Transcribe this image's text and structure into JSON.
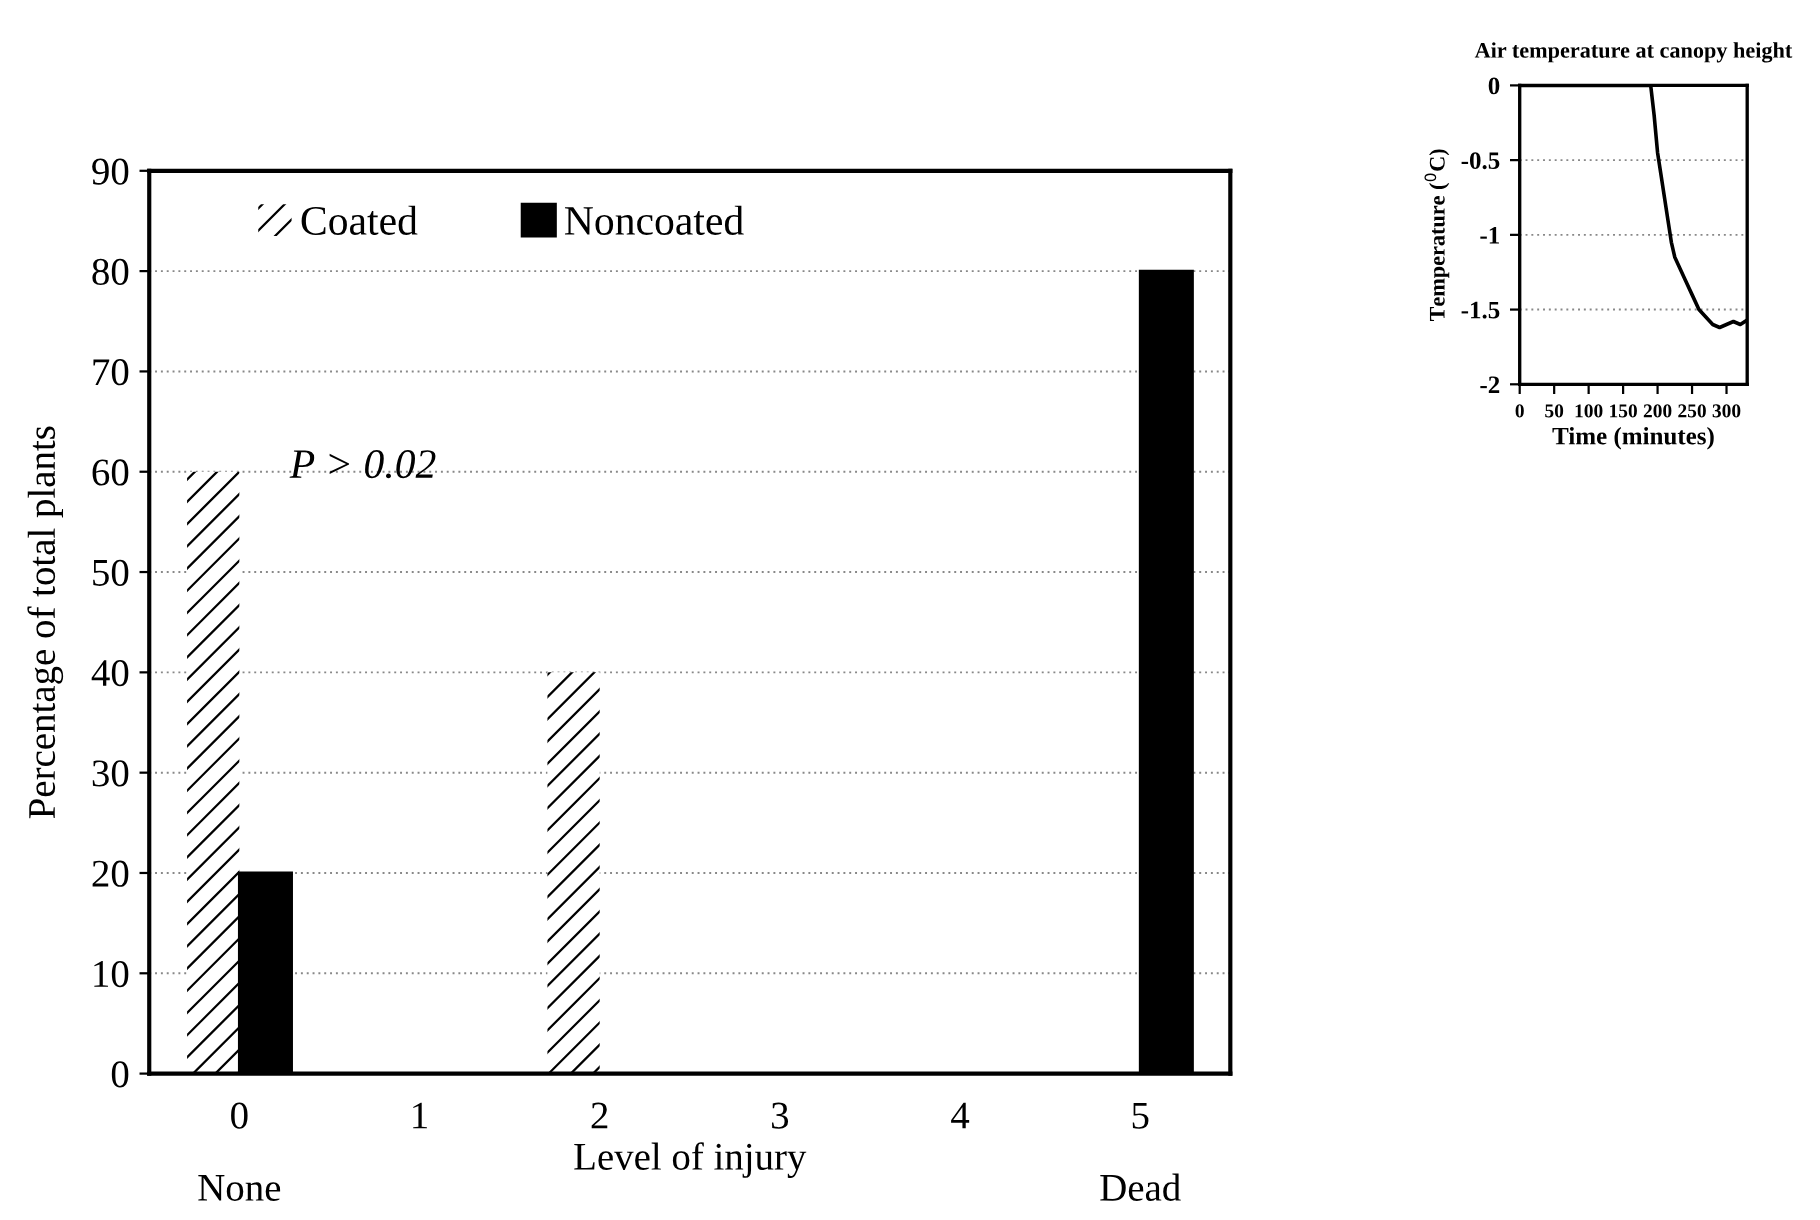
{
  "chart_data": [
    {
      "type": "bar",
      "categories": [
        "0",
        "1",
        "2",
        "3",
        "4",
        "5"
      ],
      "xlabel": "Level of injury",
      "ylabel": "Percentage of total plants",
      "series": [
        {
          "name": "Coated",
          "color": "#ffffff",
          "values": [
            60,
            0,
            40,
            0,
            0,
            0
          ]
        },
        {
          "name": "Noncoated",
          "color": "#000000",
          "values": [
            20,
            0,
            0,
            0,
            0,
            80
          ]
        }
      ],
      "ylim": [
        0,
        90
      ],
      "yticks": [
        0,
        10,
        20,
        30,
        40,
        50,
        60,
        70,
        80,
        90
      ],
      "grid": "y",
      "legend": "top left",
      "annotations": [
        "None",
        "Dead",
        "P > 0.02"
      ]
    },
    {
      "type": "line",
      "title": "Air temperature at canopy height",
      "xlabel": "Time (minutes)",
      "ylabel": "Temperature ($^{0}$C)",
      "series": [
        {
          "color": "#000000",
          "x": [
            0,
            190,
            195,
            200,
            205,
            210,
            215,
            220,
            225,
            230,
            235,
            240,
            250,
            260,
            270,
            280,
            290,
            300,
            310,
            320,
            330
          ],
          "values": [
            0,
            0,
            -0.2,
            -0.45,
            -0.6,
            -0.75,
            -0.9,
            -1.05,
            -1.15,
            -1.2,
            -1.25,
            -1.3,
            -1.4,
            -1.5,
            -1.55,
            -1.6,
            -1.62,
            -1.6,
            -1.58,
            -1.6,
            -1.57
          ]
        }
      ],
      "xlim": [
        0,
        330
      ],
      "xticks": [
        0,
        50,
        100,
        150,
        200,
        250,
        300
      ],
      "ylim": [
        -2,
        0
      ],
      "yticks": [
        -2,
        -1.5,
        -1,
        -0.5,
        0
      ],
      "grid": "y"
    }
  ]
}
